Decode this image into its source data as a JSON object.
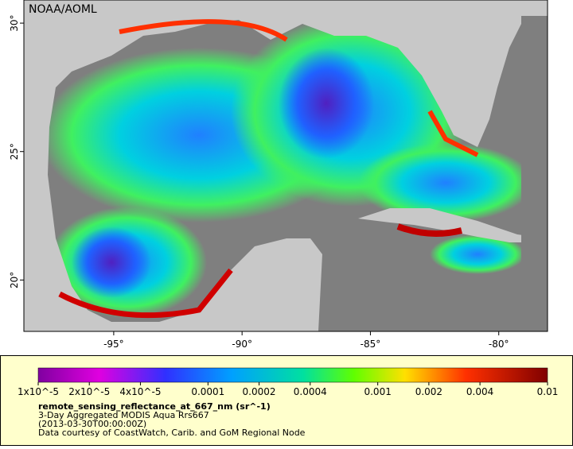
{
  "map": {
    "title": "NOAA/AOML",
    "xlim": [
      -98.5,
      -78.1
    ],
    "ylim": [
      18,
      30.9
    ],
    "lon_ticks": [
      {
        "value": -95,
        "label": "-95°"
      },
      {
        "value": -90,
        "label": "-90°"
      },
      {
        "value": -85,
        "label": "-85°"
      },
      {
        "value": -80,
        "label": "-80°"
      }
    ],
    "lat_ticks": [
      {
        "value": 20,
        "label": "20°"
      },
      {
        "value": 25,
        "label": "25°"
      },
      {
        "value": 30,
        "label": "30°"
      }
    ],
    "colorbar": {
      "scale": "log",
      "range": [
        1e-05,
        0.01
      ],
      "ticks": [
        {
          "value": 1e-05,
          "label": "1x10^-5"
        },
        {
          "value": 2e-05,
          "label": "2x10^-5"
        },
        {
          "value": 4e-05,
          "label": "4x10^-5"
        },
        {
          "value": 0.0001,
          "label": "0.0001"
        },
        {
          "value": 0.0002,
          "label": "0.0002"
        },
        {
          "value": 0.0004,
          "label": "0.0004"
        },
        {
          "value": 0.001,
          "label": "0.001"
        },
        {
          "value": 0.002,
          "label": "0.002"
        },
        {
          "value": 0.004,
          "label": "0.004"
        },
        {
          "value": 0.01,
          "label": "0.01"
        }
      ]
    },
    "legend": {
      "variable": "remote_sensing_reflectance_at_667_nm (sr^-1)",
      "dataset": "3-Day Aggregated MODIS Aqua Rrs667",
      "time": "(2013-03-30T00:00:00Z)",
      "credit": "Data courtesy of CoastWatch, Carib. and GoM Regional Node"
    }
  }
}
